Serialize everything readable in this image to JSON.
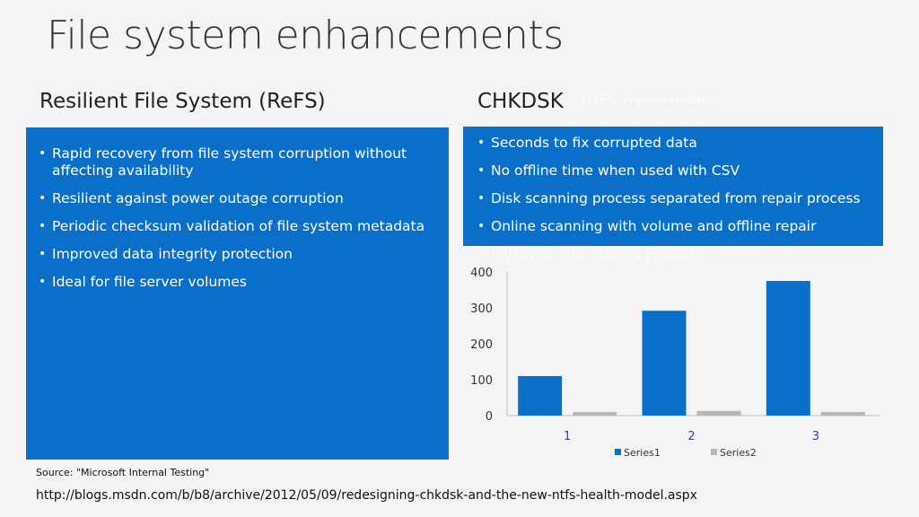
{
  "title": "File system enhancements",
  "refs": {
    "heading": "Resilient File System (ReFS)",
    "bullets": [
      "Rapid recovery from file system corruption without affecting availability",
      "Resilient against power outage corruption",
      "Periodic checksum validation of file system metadata",
      "Improved data integrity protection",
      "Ideal for file server volumes"
    ]
  },
  "chkdsk": {
    "heading": "CHKDSK",
    "ghost_heading": "NTFS improvements",
    "ghost_below": "Improved data integrity protection",
    "bullets": [
      "Seconds to fix corrupted data",
      "No offline time when used with CSV",
      "Disk scanning process separated from repair process",
      "Online scanning with volume and offline repair"
    ]
  },
  "chart_data": {
    "type": "bar",
    "categories": [
      "1",
      "2",
      "3"
    ],
    "series": [
      {
        "name": "Series1",
        "values": [
          110,
          292,
          375
        ],
        "color": "#0a6fc8"
      },
      {
        "name": "Series2",
        "values": [
          10,
          13,
          10
        ],
        "color": "#b7b7b7"
      }
    ],
    "ylim": [
      0,
      400
    ],
    "yticks": [
      0,
      100,
      200,
      300,
      400
    ],
    "grid": false,
    "legend": "bottom"
  },
  "footer": {
    "source": "Source: \"Microsoft Internal Testing\"",
    "url": "http://blogs.msdn.com/b/b8/archive/2012/05/09/redesigning-chkdsk-and-the-new-ntfs-health-model.aspx"
  }
}
